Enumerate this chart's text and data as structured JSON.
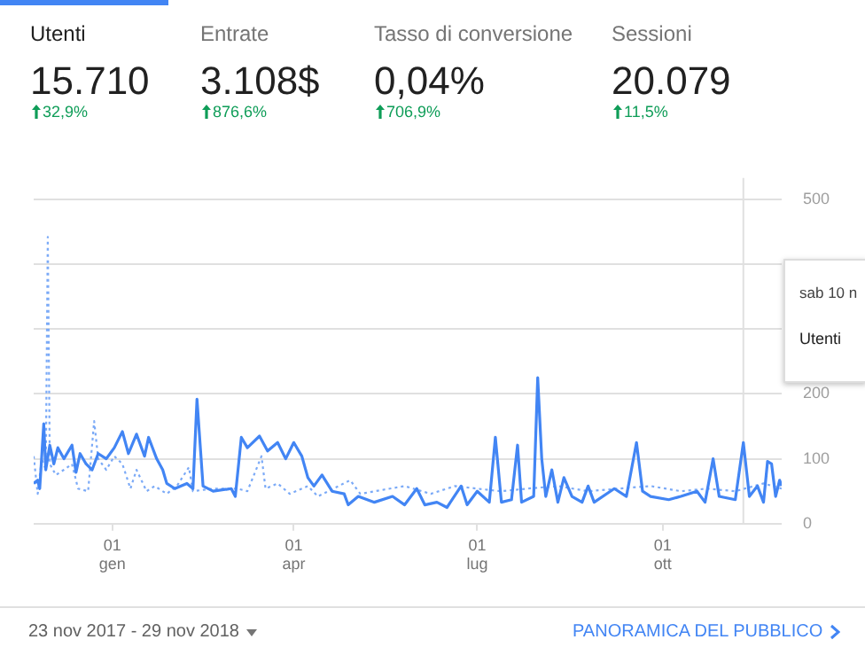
{
  "chart_data": {
    "type": "line",
    "annotations": [
      "Utenti",
      "15.710",
      "32,9%",
      "Entrate",
      "3.108$",
      "876,6%",
      "Tasso di conversione",
      "0,04%",
      "706,9%",
      "Sessioni",
      "20.079",
      "11,5%",
      "23 nov 2017 - 29 nov 2018",
      "PANORAMICA DEL PUBBLICO",
      "sab 10 n",
      "Utenti"
    ],
    "xlim": [
      "2017-11-23",
      "2018-11-29"
    ],
    "xticks": [
      {
        "value": "2018-01-01",
        "label": "01 gen"
      },
      {
        "value": "2018-04-01",
        "label": "01 apr"
      },
      {
        "value": "2018-07-01",
        "label": "01 lug"
      },
      {
        "value": "2018-10-01",
        "label": "01 ott"
      }
    ],
    "ylim": [
      0,
      500
    ],
    "yticks": [
      0,
      100,
      200,
      {
        "value": 300,
        "label": null
      },
      {
        "value": 400,
        "label": null
      },
      500
    ],
    "grid": "y",
    "legend": false,
    "marker": "none",
    "ref_lines": [
      {
        "axis": "x",
        "value": "2018-11-10",
        "color": "#e0e0e0"
      }
    ],
    "series": [
      {
        "color": "#4285f4",
        "line_style": "solid",
        "x": [
          "2017-11-23",
          "2017-11-25",
          "2017-11-26",
          "2017-11-28",
          "2017-11-29",
          "2017-12-01",
          "2017-12-03",
          "2017-12-05",
          "2017-12-08",
          "2017-12-12",
          "2017-12-14",
          "2017-12-16",
          "2017-12-19",
          "2017-12-22",
          "2017-12-25",
          "2017-12-29",
          "2018-01-02",
          "2018-01-06",
          "2018-01-09",
          "2018-01-13",
          "2018-01-17",
          "2018-01-19",
          "2018-01-23",
          "2018-01-26",
          "2018-01-28",
          "2018-02-01",
          "2018-02-07",
          "2018-02-10",
          "2018-02-12",
          "2018-02-15",
          "2018-02-20",
          "2018-03-01",
          "2018-03-03",
          "2018-03-06",
          "2018-03-09",
          "2018-03-15",
          "2018-03-19",
          "2018-03-24",
          "2018-03-28",
          "2018-04-01",
          "2018-04-05",
          "2018-04-08",
          "2018-04-11",
          "2018-04-15",
          "2018-04-20",
          "2018-04-26",
          "2018-04-28",
          "2018-05-03",
          "2018-05-11",
          "2018-05-20",
          "2018-05-26",
          "2018-06-01",
          "2018-06-05",
          "2018-06-11",
          "2018-06-16",
          "2018-06-23",
          "2018-06-26",
          "2018-07-01",
          "2018-07-07",
          "2018-07-10",
          "2018-07-13",
          "2018-07-18",
          "2018-07-21",
          "2018-07-23",
          "2018-07-29",
          "2018-07-31",
          "2018-08-02",
          "2018-08-04",
          "2018-08-07",
          "2018-08-10",
          "2018-08-13",
          "2018-08-17",
          "2018-08-22",
          "2018-08-25",
          "2018-08-28",
          "2018-09-07",
          "2018-09-13",
          "2018-09-18",
          "2018-09-21",
          "2018-09-25",
          "2018-10-04",
          "2018-10-10",
          "2018-10-18",
          "2018-10-22",
          "2018-10-26",
          "2018-10-29",
          "2018-11-06",
          "2018-11-10",
          "2018-11-13",
          "2018-11-17",
          "2018-11-20",
          "2018-11-22",
          "2018-11-24",
          "2018-11-26",
          "2018-11-28",
          "2018-11-29"
        ],
        "values": [
          62,
          67,
          54,
          154,
          83,
          121,
          92,
          117,
          100,
          121,
          79,
          108,
          92,
          83,
          108,
          100,
          117,
          142,
          108,
          138,
          104,
          133,
          100,
          83,
          62,
          54,
          62,
          54,
          192,
          58,
          50,
          54,
          42,
          133,
          117,
          135,
          112,
          125,
          100,
          125,
          104,
          71,
          58,
          75,
          50,
          46,
          29,
          42,
          33,
          42,
          29,
          54,
          29,
          33,
          25,
          58,
          29,
          50,
          33,
          133,
          33,
          37,
          121,
          33,
          42,
          225,
          100,
          42,
          83,
          33,
          71,
          42,
          33,
          58,
          33,
          54,
          42,
          125,
          50,
          42,
          37,
          42,
          50,
          33,
          100,
          42,
          37,
          125,
          42,
          58,
          33,
          96,
          92,
          42,
          67,
          58
        ]
      },
      {
        "color": "#7baaf7",
        "line_style": "dotted",
        "x": [
          "2017-11-23",
          "2017-11-25",
          "2017-11-27",
          "2017-11-29",
          "2017-11-30",
          "2017-12-01",
          "2017-12-04",
          "2017-12-08",
          "2017-12-12",
          "2017-12-15",
          "2017-12-20",
          "2017-12-23",
          "2017-12-25",
          "2017-12-29",
          "2018-01-02",
          "2018-01-06",
          "2018-01-10",
          "2018-01-13",
          "2018-01-18",
          "2018-01-22",
          "2018-01-28",
          "2018-02-02",
          "2018-02-08",
          "2018-02-10",
          "2018-02-20",
          "2018-03-04",
          "2018-03-09",
          "2018-03-16",
          "2018-03-18",
          "2018-03-24",
          "2018-03-30",
          "2018-04-08",
          "2018-04-13",
          "2018-04-29",
          "2018-05-04",
          "2018-05-26",
          "2018-06-08",
          "2018-06-20",
          "2018-07-01",
          "2018-07-13",
          "2018-07-26",
          "2018-08-10",
          "2018-08-25",
          "2018-09-09",
          "2018-09-25",
          "2018-10-10",
          "2018-10-23",
          "2018-11-06",
          "2018-11-20",
          "2018-11-29"
        ],
        "values": [
          104,
          46,
          100,
          83,
          442,
          92,
          75,
          83,
          92,
          54,
          50,
          158,
          100,
          83,
          104,
          92,
          54,
          83,
          50,
          58,
          46,
          58,
          87,
          50,
          54,
          54,
          50,
          104,
          54,
          62,
          46,
          58,
          42,
          67,
          46,
          58,
          46,
          58,
          54,
          50,
          54,
          58,
          50,
          54,
          58,
          50,
          54,
          50,
          62,
          54
        ]
      }
    ]
  }
}
